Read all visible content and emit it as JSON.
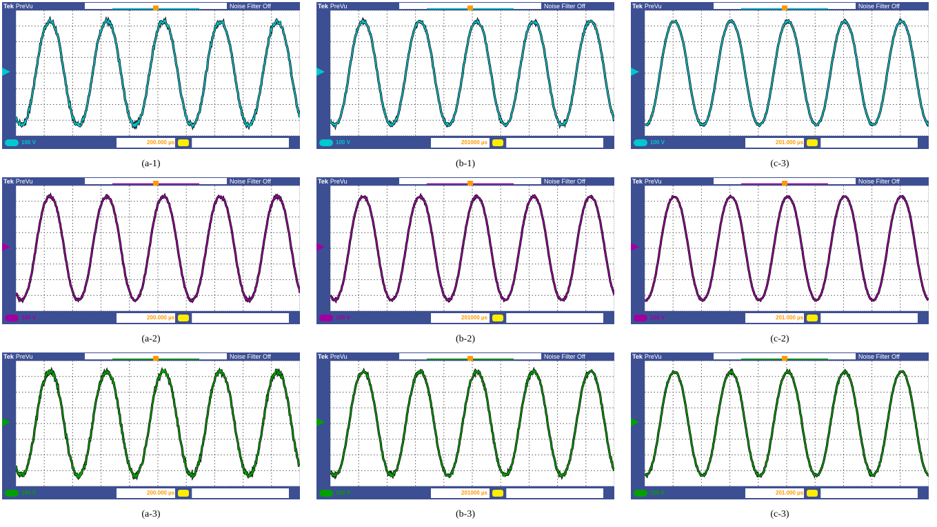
{
  "figure": {
    "panels": [
      {
        "caption": "(a-1)",
        "brand": "Tek",
        "mode": "PreVu",
        "filter": "Noise Filter Off",
        "volts": "100 V",
        "time": "200.000 µs",
        "color": "#00c8d0",
        "phase": 0.35,
        "noise": 0.045
      },
      {
        "caption": "(b-1)",
        "brand": "Tek",
        "mode": "PreVu",
        "filter": "Noise Filter Off",
        "volts": "100 V",
        "time": "201000 µs",
        "color": "#00c8d0",
        "phase": 0.33,
        "noise": 0.03
      },
      {
        "caption": "(c-3)",
        "brand": "Tek",
        "mode": "PreVu",
        "filter": "Noise Filter Off",
        "volts": "100 V",
        "time": "201.000 µs",
        "color": "#00c8d0",
        "phase": 0.27,
        "noise": 0.02
      },
      {
        "caption": "(a-2)",
        "brand": "Tek",
        "mode": "PreVu",
        "filter": "Noise Filter Off",
        "volts": "100 V",
        "time": "200.000 µs",
        "color": "#a000a0",
        "phase": 0.35,
        "noise": 0.025
      },
      {
        "caption": "(b-2)",
        "brand": "Tek",
        "mode": "PreVu",
        "filter": "Noise Filter Off",
        "volts": "100 V",
        "time": "201000 µs",
        "color": "#a000a0",
        "phase": 0.33,
        "noise": 0.02
      },
      {
        "caption": "(c-2)",
        "brand": "Tek",
        "mode": "PreVu",
        "filter": "Noise Filter Off",
        "volts": "100 V",
        "time": "201.000 µs",
        "color": "#a000a0",
        "phase": 0.27,
        "noise": 0.015
      },
      {
        "caption": "(a-3)",
        "brand": "Tek",
        "mode": "PreVu",
        "filter": "Noise Filter Off",
        "volts": "100 V",
        "time": "200.000 µs",
        "color": "#00a000",
        "phase": 0.35,
        "noise": 0.05
      },
      {
        "caption": "(b-3)",
        "brand": "Tek",
        "mode": "PreVu",
        "filter": "Noise Filter Off",
        "volts": "100 V",
        "time": "201000 µs",
        "color": "#00a000",
        "phase": 0.33,
        "noise": 0.035
      },
      {
        "caption": "(c-3)",
        "brand": "Tek",
        "mode": "PreVu",
        "filter": "Noise Filter Off",
        "volts": "100 V",
        "time": "201.000 µs",
        "color": "#00a000",
        "phase": 0.27,
        "noise": 0.025
      }
    ]
  },
  "chart_data": {
    "type": "line",
    "title": "",
    "xlabel": "",
    "ylabel": "",
    "grid": true,
    "divisions_x": 10,
    "divisions_y": 8,
    "xlim": [
      0,
      10
    ],
    "ylim": [
      -4,
      4
    ],
    "cycles_per_screen": 5,
    "amplitude_div": 3.4,
    "series": [
      {
        "name": "(a-1)"
      },
      {
        "name": "(b-1)"
      },
      {
        "name": "(c-3)"
      },
      {
        "name": "(a-2)"
      },
      {
        "name": "(b-2)"
      },
      {
        "name": "(c-2)"
      },
      {
        "name": "(a-3)"
      },
      {
        "name": "(b-3)"
      },
      {
        "name": "(c-3)"
      }
    ]
  }
}
